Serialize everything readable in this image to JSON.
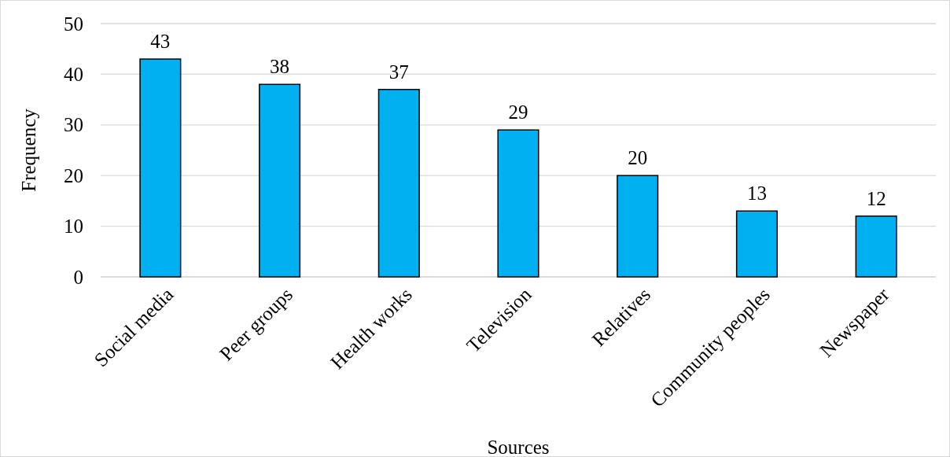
{
  "chart_data": {
    "type": "bar",
    "xlabel": "Sources",
    "ylabel": "Frequency",
    "categories": [
      "Social media",
      "Peer groups",
      "Health works",
      "Television",
      "Relatives",
      "Community peoples",
      "Newspaper"
    ],
    "values": [
      43,
      38,
      37,
      29,
      20,
      13,
      12
    ],
    "color": "#00b0f0",
    "ylim": [
      0,
      50
    ],
    "yticks": [
      0,
      10,
      20,
      30,
      40,
      50
    ],
    "grid": "y",
    "data_labels": true
  }
}
